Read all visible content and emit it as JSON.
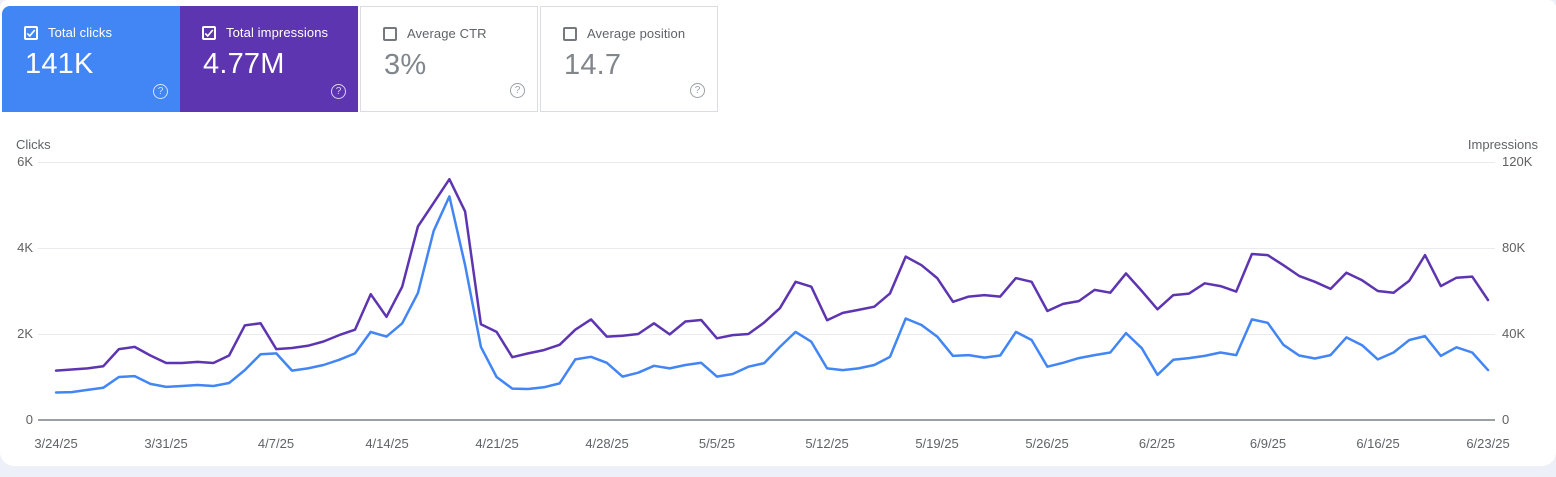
{
  "page": {
    "background": "#edf0f8",
    "panel_background": "#ffffff"
  },
  "icons": {
    "help": "?",
    "checkbox_checked": "check-mark",
    "checkbox_unchecked": "empty-box"
  },
  "cards": [
    {
      "label": "Total clicks",
      "value": "141K",
      "checked": true,
      "color": "#4285f4"
    },
    {
      "label": "Total impressions",
      "value": "4.77M",
      "checked": true,
      "color": "#5e35b1"
    },
    {
      "label": "Average CTR",
      "value": "3%",
      "checked": false
    },
    {
      "label": "Average position",
      "value": "14.7",
      "checked": false
    }
  ],
  "chart_data": {
    "type": "line",
    "x_resolution": "daily",
    "x_labels": [
      "3/24/25",
      "3/31/25",
      "4/7/25",
      "4/14/25",
      "4/21/25",
      "4/28/25",
      "5/5/25",
      "5/12/25",
      "5/19/25",
      "5/26/25",
      "6/2/25",
      "6/9/25",
      "6/16/25",
      "6/23/25"
    ],
    "left_axis": {
      "title": "Clicks",
      "ticks": [
        "6K",
        "4K",
        "2K",
        "0"
      ],
      "min": 0,
      "max": 6000
    },
    "right_axis": {
      "title": "Impressions",
      "ticks": [
        "120K",
        "80K",
        "40K",
        "0"
      ],
      "min": 0,
      "max": 120000
    },
    "grid": "horizontal",
    "legend": "none",
    "series": [
      {
        "name": "Clicks",
        "axis": "left",
        "color": "#4285f4",
        "values": [
          640,
          650,
          700,
          750,
          1000,
          1020,
          840,
          770,
          790,
          815,
          790,
          860,
          1160,
          1530,
          1550,
          1150,
          1200,
          1280,
          1400,
          1550,
          2050,
          1940,
          2250,
          2950,
          4400,
          5200,
          3600,
          1700,
          1000,
          730,
          720,
          760,
          850,
          1410,
          1470,
          1330,
          1010,
          1100,
          1260,
          1200,
          1280,
          1330,
          1010,
          1070,
          1240,
          1320,
          1700,
          2050,
          1820,
          1200,
          1160,
          1200,
          1280,
          1470,
          2360,
          2210,
          1940,
          1490,
          1510,
          1450,
          1500,
          2050,
          1860,
          1240,
          1330,
          1440,
          1510,
          1570,
          2020,
          1670,
          1050,
          1400,
          1440,
          1490,
          1570,
          1510,
          2340,
          2260,
          1750,
          1500,
          1430,
          1510,
          1920,
          1740,
          1410,
          1570,
          1860,
          1950,
          1490,
          1690,
          1570,
          1160
        ]
      },
      {
        "name": "Impressions",
        "axis": "right",
        "color": "#5e35b1",
        "values": [
          23000,
          23500,
          24000,
          25000,
          33000,
          34000,
          30000,
          26500,
          26500,
          27000,
          26500,
          30000,
          44000,
          45000,
          33000,
          33500,
          34500,
          36500,
          39500,
          42000,
          58500,
          48000,
          62000,
          90000,
          101000,
          112000,
          97000,
          44500,
          41000,
          29200,
          31000,
          32500,
          35000,
          42000,
          46800,
          38800,
          39200,
          40000,
          45000,
          39800,
          45800,
          46500,
          38000,
          39500,
          40000,
          45300,
          52000,
          64300,
          62000,
          46400,
          49800,
          51200,
          52700,
          58900,
          76000,
          72000,
          66000,
          55000,
          57400,
          58100,
          57400,
          66000,
          64300,
          50700,
          54000,
          55300,
          60500,
          59200,
          68200,
          60000,
          51500,
          58100,
          58800,
          63600,
          62300,
          59700,
          77200,
          76700,
          72000,
          67000,
          64300,
          61000,
          68500,
          65000,
          60000,
          59200,
          64800,
          76700,
          62300,
          66200,
          66700,
          55800
        ]
      }
    ]
  }
}
